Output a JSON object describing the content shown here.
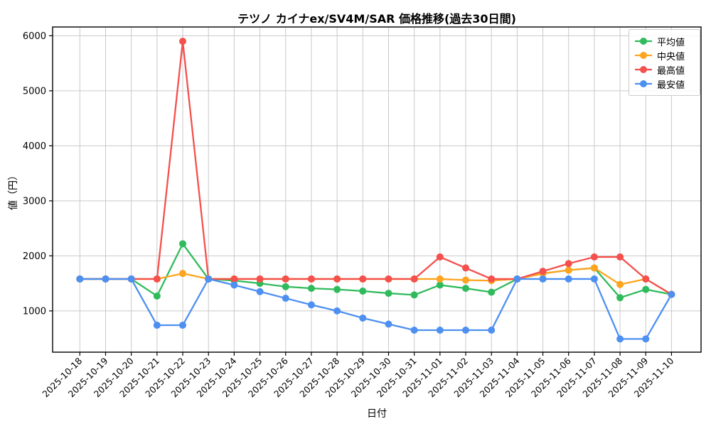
{
  "chart_data": {
    "type": "line",
    "title": "テツノ カイナex/SV4M/SAR 価格推移(過去30日間)",
    "xlabel": "日付",
    "ylabel": "値（円）",
    "categories": [
      "2025-10-18",
      "2025-10-19",
      "2025-10-20",
      "2025-10-21",
      "2025-10-22",
      "2025-10-23",
      "2025-10-24",
      "2025-10-25",
      "2025-10-26",
      "2025-10-27",
      "2025-10-28",
      "2025-10-29",
      "2025-10-30",
      "2025-10-31",
      "2025-11-01",
      "2025-11-02",
      "2025-11-03",
      "2025-11-04",
      "2025-11-05",
      "2025-11-06",
      "2025-11-07",
      "2025-11-08",
      "2025-11-09",
      "2025-11-10"
    ],
    "yticks": [
      1000,
      2000,
      3000,
      4000,
      5000,
      6000
    ],
    "ylim": [
      250,
      6160
    ],
    "grid": true,
    "legend_position": "upper right",
    "grid_color": "#c9c9c9",
    "axis_color": "#000000",
    "series": [
      {
        "name": "平均値",
        "color": "#2fbb5c",
        "values": [
          1580,
          1580,
          1580,
          1270,
          2220,
          1580,
          1550,
          1500,
          1440,
          1410,
          1390,
          1360,
          1320,
          1290,
          1470,
          1410,
          1340,
          1580,
          1680,
          1740,
          1780,
          1240,
          1390,
          1300
        ]
      },
      {
        "name": "中央値",
        "color": "#ffa41e",
        "values": [
          1580,
          1580,
          1580,
          1580,
          1680,
          1580,
          1580,
          1580,
          1580,
          1580,
          1580,
          1580,
          1580,
          1580,
          1580,
          1560,
          1550,
          1580,
          1680,
          1740,
          1780,
          1480,
          1580,
          1300
        ]
      },
      {
        "name": "最高値",
        "color": "#f4504c",
        "values": [
          1580,
          1580,
          1580,
          1580,
          5900,
          1580,
          1580,
          1580,
          1580,
          1580,
          1580,
          1580,
          1580,
          1580,
          1980,
          1780,
          1580,
          1580,
          1720,
          1860,
          1980,
          1980,
          1580,
          1300
        ]
      },
      {
        "name": "最安値",
        "color": "#4d90f1",
        "values": [
          1580,
          1580,
          1580,
          740,
          740,
          1580,
          1470,
          1350,
          1230,
          1110,
          1000,
          870,
          760,
          650,
          650,
          650,
          650,
          1580,
          1580,
          1580,
          1580,
          490,
          490,
          1300
        ]
      }
    ]
  }
}
